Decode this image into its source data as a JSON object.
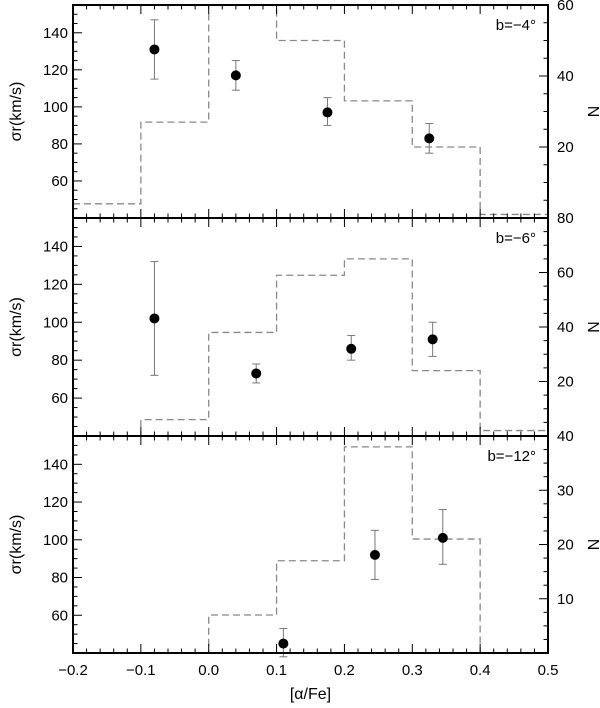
{
  "chart_data": [
    {
      "type": "scatter",
      "panel_label": "b=−4°",
      "xlabel": "",
      "xlim": [
        -0.2,
        0.5
      ],
      "ylabel": "σr(km/s)",
      "ylim": [
        40,
        155
      ],
      "y_ticks": [
        "60",
        "80",
        "100",
        "120",
        "140"
      ],
      "y2label": "N",
      "y2lim": [
        0,
        60
      ],
      "y2_ticks": [
        "20",
        "40",
        "60"
      ],
      "points": [
        {
          "x": -0.08,
          "y": 131,
          "err_low": 115,
          "err_high": 147
        },
        {
          "x": 0.04,
          "y": 117,
          "err_low": 109,
          "err_high": 125
        },
        {
          "x": 0.175,
          "y": 97,
          "err_low": 90,
          "err_high": 105
        },
        {
          "x": 0.325,
          "y": 83,
          "err_low": 75,
          "err_high": 91
        }
      ],
      "histogram": {
        "bin_edges": [
          -0.2,
          -0.1,
          0.0,
          0.1,
          0.2,
          0.3,
          0.4,
          0.5
        ],
        "counts": [
          4,
          27,
          60,
          50,
          33,
          20,
          1
        ]
      }
    },
    {
      "type": "scatter",
      "panel_label": "b=−6°",
      "xlabel": "",
      "xlim": [
        -0.2,
        0.5
      ],
      "ylabel": "σr(km/s)",
      "ylim": [
        40,
        155
      ],
      "y_ticks": [
        "60",
        "80",
        "100",
        "120",
        "140"
      ],
      "y2label": "N",
      "y2lim": [
        0,
        80
      ],
      "y2_ticks": [
        "20",
        "40",
        "60",
        "80"
      ],
      "points": [
        {
          "x": -0.08,
          "y": 102,
          "err_low": 72,
          "err_high": 132
        },
        {
          "x": 0.07,
          "y": 73,
          "err_low": 68,
          "err_high": 78
        },
        {
          "x": 0.21,
          "y": 86,
          "err_low": 80,
          "err_high": 93
        },
        {
          "x": 0.33,
          "y": 91,
          "err_low": 82,
          "err_high": 100
        }
      ],
      "histogram": {
        "bin_edges": [
          -0.2,
          -0.1,
          0.0,
          0.1,
          0.2,
          0.3,
          0.4,
          0.5
        ],
        "counts": [
          0,
          6,
          38,
          59,
          65,
          24,
          2
        ]
      }
    },
    {
      "type": "scatter",
      "panel_label": "b=−12°",
      "xlabel": "[α/Fe]",
      "xlim": [
        -0.2,
        0.5
      ],
      "x_ticks": [
        "−0.2",
        "−0.1",
        "0.0",
        "0.1",
        "0.2",
        "0.3",
        "0.4",
        "0.5"
      ],
      "ylabel": "σr(km/s)",
      "ylim": [
        40,
        155
      ],
      "y_ticks": [
        "60",
        "80",
        "100",
        "120",
        "140"
      ],
      "y2label": "N",
      "y2lim": [
        0,
        40
      ],
      "y2_ticks": [
        "10",
        "20",
        "30",
        "40"
      ],
      "points": [
        {
          "x": 0.11,
          "y": 45,
          "err_low": 38,
          "err_high": 53
        },
        {
          "x": 0.245,
          "y": 92,
          "err_low": 79,
          "err_high": 105
        },
        {
          "x": 0.345,
          "y": 101,
          "err_low": 87,
          "err_high": 116
        }
      ],
      "histogram": {
        "bin_edges": [
          -0.2,
          -0.1,
          0.0,
          0.1,
          0.2,
          0.3,
          0.4,
          0.5
        ],
        "counts": [
          0,
          0,
          7,
          17,
          38,
          21,
          0
        ]
      }
    }
  ]
}
